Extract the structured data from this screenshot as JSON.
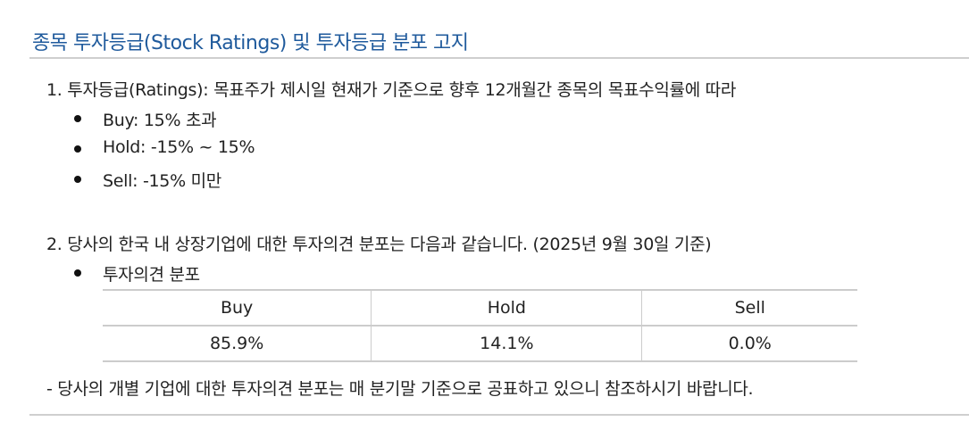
{
  "title": "종목 투자등급(Stock Ratings) 및 투자등급 분포 고지",
  "section1": {
    "text": "1. 투자등급(Ratings): 목표주가 제시일 현재가 기준으로 향후 12개월간 종목의 목표수익률에 따라",
    "bullets": [
      "Buy: 15% 초과",
      "Hold: -15% ~ 15%",
      "Sell: -15% 미만"
    ]
  },
  "section2": {
    "text": "2. 당사의 한국 내 상장기업에 대한 투자의견 분포는 다음과 같습니다. (2025년 9월 30일 기준)",
    "bullet": "투자의견 분포",
    "table": {
      "headers": [
        "Buy",
        "Hold",
        "Sell"
      ],
      "values": [
        "85.9%",
        "14.1%",
        "0.0%"
      ]
    }
  },
  "note": "- 당사의 개별 기업에 대한 투자의견 분포는 매 분기말 기준으로 공표하고 있으니 참조하시기 바랍니다.",
  "colors": {
    "title": "#1f5a9c",
    "rule": "#cfcfcf"
  }
}
